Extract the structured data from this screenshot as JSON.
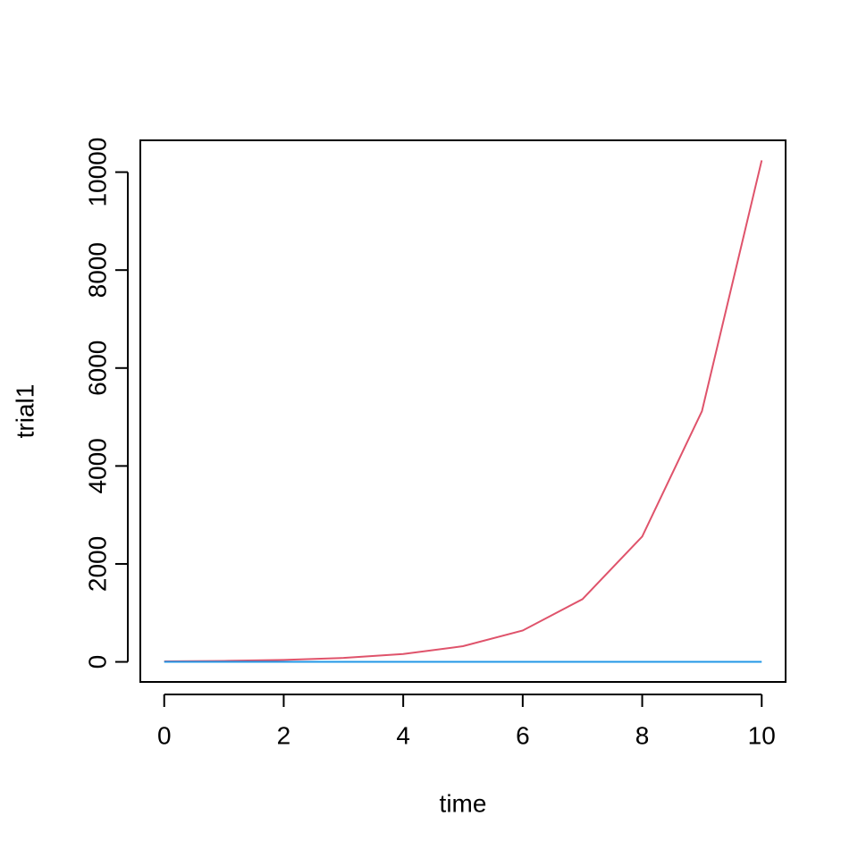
{
  "chart_data": {
    "type": "line",
    "x_label": "time",
    "y_label": "trial1",
    "x": [
      0,
      1,
      2,
      3,
      4,
      5,
      6,
      7,
      8,
      9,
      10
    ],
    "series": [
      {
        "color": "#df536b",
        "values": [
          10,
          20,
          40,
          80,
          160,
          320,
          640,
          1280,
          2560,
          5120,
          10240
        ]
      },
      {
        "color": "#2297e6",
        "values": [
          0,
          0,
          0,
          0,
          0,
          0,
          0,
          0,
          0,
          0,
          0
        ]
      }
    ],
    "xlim": [
      -0.4,
      10.4
    ],
    "xticks": [
      0,
      2,
      4,
      6,
      8,
      10
    ],
    "ylim": [
      -409.6,
      10649.6
    ],
    "yticks": [
      0,
      2000,
      4000,
      6000,
      8000,
      10000
    ],
    "grid": false
  }
}
